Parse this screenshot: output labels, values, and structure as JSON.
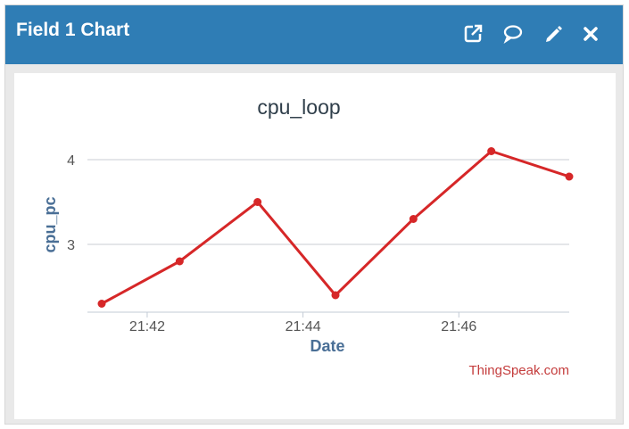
{
  "header": {
    "title": "Field 1 Chart",
    "icons": [
      "external-link-icon",
      "comment-icon",
      "pencil-icon",
      "close-icon"
    ]
  },
  "colors": {
    "header_bg": "#2f7db5",
    "line": "#d62728",
    "axis_title": "#4a6f96",
    "credit": "#c43c3c"
  },
  "chart_data": {
    "type": "line",
    "title": "cpu_loop",
    "xlabel": "Date",
    "ylabel": "cpu_pc",
    "x_ticks": [
      "21:42",
      "21:44",
      "21:46"
    ],
    "y_ticks": [
      3,
      4
    ],
    "grid": true,
    "series": [
      {
        "x": [
          "21:41:25",
          "21:42:25",
          "21:43:25",
          "21:44:25",
          "21:45:25",
          "21:46:25",
          "21:47:25"
        ],
        "values": [
          2.3,
          2.8,
          3.5,
          2.4,
          3.3,
          4.1,
          3.8
        ]
      }
    ],
    "ylim": [
      2.2,
      4.2
    ],
    "credit": "ThingSpeak.com"
  }
}
